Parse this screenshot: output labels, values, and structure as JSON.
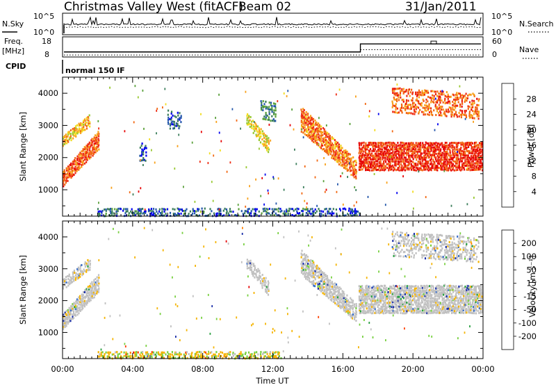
{
  "header": {
    "station": "Christmas Valley West (fitACF)",
    "beam": "Beam 02",
    "date": "31/Jan/2011"
  },
  "noise_panel": {
    "left_label": "N.Sky",
    "left_ticks": [
      "10^5",
      "10^0"
    ],
    "right_ticks": [
      "10^5",
      "10^0"
    ],
    "right_label": "N.Search"
  },
  "freq_panel": {
    "left_label_1": "Freq.",
    "left_label_2": "[MHz]",
    "left_ticks": [
      "18",
      "8"
    ],
    "right_ticks": [
      "60",
      "0"
    ],
    "right_label": "Nave",
    "nave_step": {
      "before_hour": 17.0,
      "freq_before": 10.5,
      "freq_after": 14.5,
      "nave_before": 10,
      "nave_after": 30
    }
  },
  "cpid_panel": {
    "label": "CPID",
    "mode": "normal 150 IF"
  },
  "chart_data": [
    {
      "type": "heatmap",
      "title": "",
      "ylabel": "Slant Range [km]",
      "xlim": [
        0,
        24
      ],
      "ylim": [
        180,
        4500
      ],
      "yticks": [
        "1000",
        "2000",
        "3000",
        "4000"
      ],
      "colorbar": {
        "label": "Power [dB]",
        "ticks": [
          "4",
          "8",
          "12",
          "16",
          "20",
          "24",
          "28"
        ],
        "colors": [
          "#0000ee",
          "#2255aa",
          "#3a7d5a",
          "#5aa03a",
          "#98c830",
          "#f2dc1e",
          "#f8a018",
          "#f26812",
          "#ee2a10",
          "#e60000"
        ],
        "range": [
          0,
          32
        ]
      },
      "regions": [
        {
          "t0": 0.0,
          "t1": 2.1,
          "r0": 1100,
          "r1": 1600,
          "r0e": 2300,
          "r1e": 2900,
          "level": 0.78,
          "density": 0.95
        },
        {
          "t0": 0.0,
          "t1": 1.6,
          "r0": 2350,
          "r1": 2700,
          "r0e": 3000,
          "r1e": 3400,
          "level": 0.62,
          "density": 0.85
        },
        {
          "t0": 4.4,
          "t1": 4.8,
          "r0": 1900,
          "r1": 2500,
          "r0e": 1900,
          "r1e": 2400,
          "level": 0.15,
          "density": 0.5
        },
        {
          "t0": 6.0,
          "t1": 6.8,
          "r0": 2900,
          "r1": 3500,
          "r0e": 2900,
          "r1e": 3400,
          "level": 0.15,
          "density": 0.6
        },
        {
          "t0": 10.5,
          "t1": 11.8,
          "r0": 3000,
          "r1": 3400,
          "r0e": 2100,
          "r1e": 2600,
          "level": 0.55,
          "density": 0.8
        },
        {
          "t0": 11.3,
          "t1": 12.2,
          "r0": 3200,
          "r1": 3800,
          "r0e": 3100,
          "r1e": 3700,
          "level": 0.25,
          "density": 0.55
        },
        {
          "t0": 13.6,
          "t1": 16.8,
          "r0": 2800,
          "r1": 3600,
          "r0e": 1300,
          "r1e": 1900,
          "level": 0.72,
          "density": 0.9
        },
        {
          "t0": 16.9,
          "t1": 24.0,
          "r0": 1600,
          "r1": 2500,
          "r0e": 1600,
          "r1e": 2500,
          "level": 0.86,
          "density": 0.9
        },
        {
          "t0": 18.8,
          "t1": 23.8,
          "r0": 3400,
          "r1": 4200,
          "r0e": 3200,
          "r1e": 4000,
          "level": 0.76,
          "density": 0.55
        },
        {
          "t0": 2.0,
          "t1": 17.0,
          "r0": 180,
          "r1": 450,
          "r0e": 180,
          "r1e": 450,
          "level": 0.18,
          "density": 0.5
        }
      ]
    },
    {
      "type": "heatmap",
      "title": "",
      "ylabel": "Slant Range [km]",
      "xlabel": "Time UT",
      "xlim": [
        0,
        24
      ],
      "ylim": [
        180,
        4500
      ],
      "xticks": [
        "00:00",
        "04:00",
        "08:00",
        "12:00",
        "16:00",
        "20:00",
        "00:00"
      ],
      "yticks": [
        "1000",
        "2000",
        "3000",
        "4000"
      ],
      "colorbar": {
        "label": "Velocity [m s⁻¹]",
        "ticks": [
          "200",
          "100",
          "50",
          "15",
          "-15",
          "-50",
          "-100",
          "-200"
        ],
        "colors": [
          "#1a2ea8",
          "#3a6ec8",
          "#28a040",
          "#78d040",
          "#c0c0c0",
          "#f5b400",
          "#ff8000",
          "#ff4000",
          "#e60000"
        ],
        "range": [
          -250,
          250
        ]
      },
      "ground_scatter_color": "#c0c0c0",
      "regions": [
        {
          "t0": 0.0,
          "t1": 2.1,
          "r0": 1100,
          "r1": 1600,
          "r0e": 2300,
          "r1e": 2900,
          "level": 0.15,
          "density": 0.95
        },
        {
          "t0": 0.0,
          "t1": 1.6,
          "r0": 2350,
          "r1": 2700,
          "r0e": 3000,
          "r1e": 3400,
          "level": 0.15,
          "density": 0.8
        },
        {
          "t0": 10.5,
          "t1": 11.8,
          "r0": 3000,
          "r1": 3400,
          "r0e": 2100,
          "r1e": 2600,
          "level": 0.15,
          "density": 0.75
        },
        {
          "t0": 13.6,
          "t1": 16.8,
          "r0": 2800,
          "r1": 3600,
          "r0e": 1300,
          "r1e": 1900,
          "level": 0.15,
          "density": 0.85
        },
        {
          "t0": 16.9,
          "t1": 24.0,
          "r0": 1600,
          "r1": 2500,
          "r0e": 1600,
          "r1e": 2500,
          "level": 0.15,
          "density": 0.9
        },
        {
          "t0": 18.8,
          "t1": 23.8,
          "r0": 3400,
          "r1": 4200,
          "r0e": 3200,
          "r1e": 4000,
          "level": 0.15,
          "density": 0.55
        },
        {
          "t0": 2.0,
          "t1": 12.5,
          "r0": 180,
          "r1": 420,
          "r0e": 180,
          "r1e": 420,
          "level": 0.65,
          "density": 0.55
        }
      ]
    }
  ]
}
